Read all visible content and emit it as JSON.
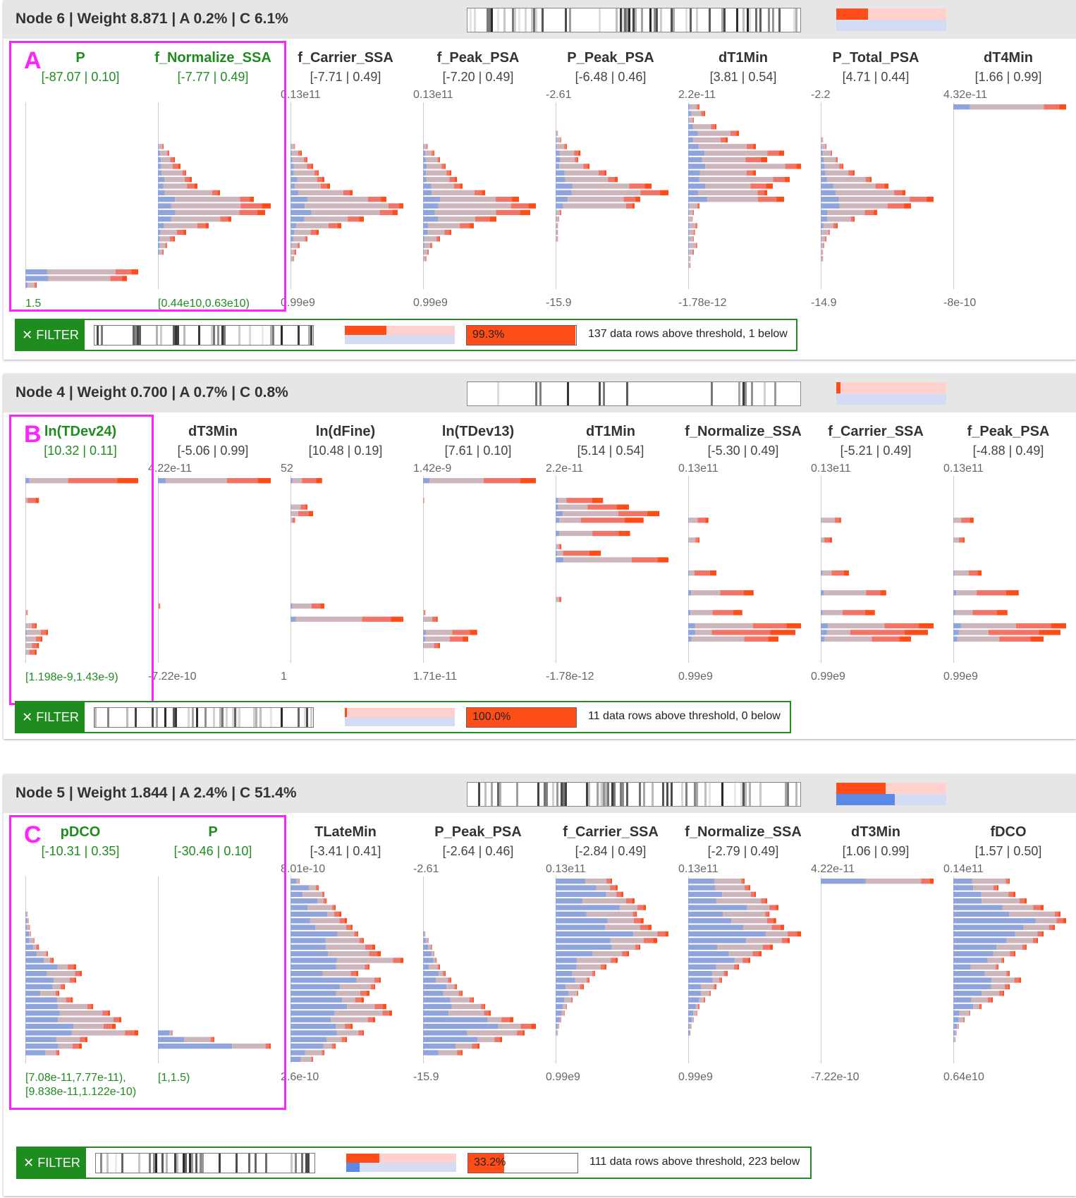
{
  "colors": {
    "selected": "#1e8c1e",
    "highlight": "#ff22ff",
    "red": "#ff4d1a",
    "blue": "#5a8ae6"
  },
  "icons": {
    "filter_close": "close-icon"
  },
  "nodes": [
    {
      "title": "Node 6 | Weight 8.871 | A 0.2% | C 6.1%",
      "letter": "A",
      "ratio": {
        "red": 0.29,
        "blue": 0.0
      },
      "strip_seed": 1,
      "columns": [
        {
          "name": "P",
          "range": "[-87.07 | 0.10]",
          "max": "",
          "min": "1.5",
          "selected": true,
          "sel_range": [
            "1.5"
          ],
          "shape": [
            0,
            0,
            0,
            0,
            0,
            0,
            0,
            0,
            0,
            0,
            0,
            0,
            0,
            0,
            0,
            0,
            0,
            0,
            0,
            0,
            0,
            0,
            0,
            0,
            0,
            1,
            0.9,
            0.1
          ],
          "redfrac": 0.15,
          "bluefrac": 0.25
        },
        {
          "name": "f_Normalize_SSA",
          "range": "[-7.77 | 0.49]",
          "max": "",
          "min": "[0.44e10,0.63e10)",
          "selected": true,
          "sel_range": [
            "[0.44e10,0.63e10)"
          ],
          "shape": [
            0,
            0,
            0,
            0,
            0,
            0,
            0.05,
            0.1,
            0.15,
            0.2,
            0.25,
            0.3,
            0.35,
            0.55,
            0.85,
            1.0,
            0.95,
            0.65,
            0.45,
            0.25,
            0.15,
            0.08,
            0.05,
            0,
            0,
            0,
            0,
            0
          ],
          "redfrac": 0.25,
          "bluefrac": 0.15
        },
        {
          "name": "f_Carrier_SSA",
          "range": "[-7.71 | 0.49]",
          "max": "0.13e11",
          "min": "0.99e9",
          "selected": false,
          "shape": [
            0,
            0,
            0,
            0,
            0,
            0,
            0.04,
            0.1,
            0.15,
            0.2,
            0.25,
            0.3,
            0.35,
            0.55,
            0.85,
            1.0,
            0.95,
            0.65,
            0.45,
            0.25,
            0.15,
            0.08,
            0.05,
            0.03,
            0,
            0,
            0,
            0
          ],
          "redfrac": 0.25,
          "bluefrac": 0.15
        },
        {
          "name": "f_Peak_PSA",
          "range": "[-7.20 | 0.49]",
          "max": "0.13e11",
          "min": "0.99e9",
          "selected": false,
          "shape": [
            0,
            0,
            0,
            0,
            0,
            0,
            0.04,
            0.1,
            0.15,
            0.2,
            0.25,
            0.3,
            0.35,
            0.55,
            0.85,
            1.0,
            0.95,
            0.65,
            0.45,
            0.25,
            0.15,
            0.08,
            0.05,
            0.03,
            0,
            0,
            0,
            0
          ],
          "redfrac": 0.25,
          "bluefrac": 0.15
        },
        {
          "name": "P_Peak_PSA",
          "range": "[-6.48 | 0.46]",
          "max": "-2.61",
          "min": "-15.9",
          "selected": false,
          "shape": [
            0,
            0,
            0,
            0,
            0.02,
            0.05,
            0.1,
            0.22,
            0.2,
            0.3,
            0.45,
            0.55,
            0.85,
            1.0,
            0.75,
            0.7,
            0.05,
            0.03,
            0.02,
            0.02,
            0.02,
            0,
            0,
            0,
            0,
            0,
            0,
            0
          ],
          "redfrac": 0.2,
          "bluefrac": 0.15
        },
        {
          "name": "dT1Min",
          "range": "[3.81 | 0.54]",
          "max": "2.2e-11",
          "min": "-1.78e-12",
          "selected": false,
          "shape": [
            0.1,
            0.15,
            0.05,
            0.25,
            0.45,
            0.35,
            0.6,
            0.85,
            0.7,
            1.0,
            0.6,
            0.9,
            0.75,
            0.7,
            0.85,
            0.1,
            0.05,
            0.04,
            0.08,
            0.06,
            0.05,
            0.08,
            0.05,
            0.02,
            0.02,
            0,
            0,
            0
          ],
          "redfrac": 0.2,
          "bluefrac": 0.15
        },
        {
          "name": "P_Total_PSA",
          "range": "[4.71 | 0.44]",
          "max": "-2.2",
          "min": "-14.9",
          "selected": false,
          "shape": [
            0,
            0,
            0,
            0,
            0,
            0.02,
            0.05,
            0.1,
            0.15,
            0.2,
            0.3,
            0.45,
            0.6,
            0.75,
            1.0,
            0.8,
            0.5,
            0.3,
            0.15,
            0.08,
            0.05,
            0.03,
            0.02,
            0.02,
            0,
            0,
            0,
            0
          ],
          "redfrac": 0.2,
          "bluefrac": 0.15
        },
        {
          "name": "dT4Min",
          "range": "[1.66 | 0.99]",
          "max": "4.32e-11",
          "min": "-8e-10",
          "selected": false,
          "shape": [
            1.0,
            0,
            0,
            0,
            0,
            0,
            0,
            0,
            0,
            0,
            0,
            0,
            0,
            0,
            0,
            0,
            0,
            0,
            0,
            0,
            0,
            0,
            0,
            0,
            0,
            0,
            0,
            0
          ],
          "redfrac": 0.15,
          "bluefrac": 0.2
        }
      ],
      "filter": {
        "label": "FILTER",
        "ratio": {
          "red": 0.38,
          "blue": 0.0
        },
        "pct": 0.993,
        "pct_label": "99.3%",
        "text": "137 data rows above threshold, 1 below",
        "strip_seed": 2
      }
    },
    {
      "title": "Node 4 | Weight 0.700 | A 0.7% | C 0.8%",
      "letter": "B",
      "ratio": {
        "red": 0.04,
        "blue": 0.0
      },
      "strip_seed": 3,
      "columns": [
        {
          "name": "ln(TDev24)",
          "range": "[10.32 | 0.11]",
          "max": "",
          "min": "[1.198e-9,1.43e-9)",
          "selected": true,
          "sel_range": [
            "[1.198e-9,1.43e-9)"
          ],
          "shape": [
            1.0,
            0,
            0,
            0.12,
            0,
            0,
            0,
            0,
            0,
            0,
            0,
            0,
            0,
            0,
            0,
            0,
            0,
            0,
            0,
            0,
            0.02,
            0,
            0.1,
            0.2,
            0.15,
            0.12,
            0.1,
            0
          ],
          "redfrac": 0.6,
          "bluefrac": 0.05
        },
        {
          "name": "dT3Min",
          "range": "[-5.06 | 0.99]",
          "max": "4.22e-11",
          "min": "-7.22e-10",
          "selected": false,
          "shape": [
            1.0,
            0,
            0,
            0,
            0,
            0,
            0,
            0,
            0,
            0,
            0,
            0,
            0,
            0,
            0,
            0,
            0,
            0,
            0,
            0.02,
            0,
            0,
            0,
            0,
            0,
            0,
            0,
            0
          ],
          "redfrac": 0.6,
          "bluefrac": 0.05
        },
        {
          "name": "ln(dFine)",
          "range": "[10.48 | 0.19]",
          "max": "52",
          "min": "1",
          "selected": false,
          "shape": [
            0.28,
            0,
            0,
            0,
            0.15,
            0.2,
            0.04,
            0,
            0,
            0,
            0,
            0,
            0,
            0,
            0,
            0,
            0,
            0,
            0,
            0.3,
            0,
            1.0,
            0,
            0,
            0,
            0,
            0,
            0
          ],
          "redfrac": 0.55,
          "bluefrac": 0.05
        },
        {
          "name": "ln(TDev13)",
          "range": "[7.61 | 0.10]",
          "max": "1.42e-9",
          "min": "1.71e-11",
          "selected": false,
          "shape": [
            1.0,
            0,
            0,
            0.01,
            0,
            0,
            0,
            0,
            0,
            0,
            0,
            0,
            0,
            0,
            0,
            0,
            0,
            0,
            0,
            0,
            0.02,
            0.13,
            0,
            0.48,
            0.4,
            0.15,
            0,
            0
          ],
          "redfrac": 0.6,
          "bluefrac": 0.05
        },
        {
          "name": "dT1Min",
          "range": "[5.14 | 0.54]",
          "max": "2.2e-11",
          "min": "-1.78e-12",
          "selected": false,
          "shape": [
            0,
            0,
            0,
            0.42,
            0.65,
            0.92,
            0.78,
            0,
            0.66,
            0,
            0.05,
            0.4,
            1.0,
            0,
            0,
            0,
            0,
            0,
            0.05,
            0,
            0,
            0,
            0,
            0,
            0,
            0,
            0,
            0
          ],
          "redfrac": 0.6,
          "bluefrac": 0.05
        },
        {
          "name": "f_Normalize_SSA",
          "range": "[-5.30 | 0.49]",
          "max": "0.13e11",
          "min": "0.99e9",
          "selected": false,
          "shape": [
            0,
            0,
            0,
            0,
            0,
            0,
            0.18,
            0,
            0,
            0.1,
            0,
            0,
            0,
            0,
            0.25,
            0,
            0,
            0.58,
            0,
            0,
            0.48,
            0,
            1.0,
            0.95,
            0.8,
            0,
            0,
            0
          ],
          "redfrac": 0.6,
          "bluefrac": 0.05
        },
        {
          "name": "f_Carrier_SSA",
          "range": "[-5.21 | 0.49]",
          "max": "0.13e11",
          "min": "0.99e9",
          "selected": false,
          "shape": [
            0,
            0,
            0,
            0,
            0,
            0,
            0.18,
            0,
            0,
            0.1,
            0,
            0,
            0,
            0,
            0.25,
            0,
            0,
            0.58,
            0,
            0,
            0.48,
            0,
            1.0,
            0.95,
            0.8,
            0,
            0,
            0
          ],
          "redfrac": 0.6,
          "bluefrac": 0.05
        },
        {
          "name": "f_Peak_PSA",
          "range": "[-4.88 | 0.49]",
          "max": "0.13e11",
          "min": "0.99e9",
          "selected": false,
          "shape": [
            0,
            0,
            0,
            0,
            0,
            0,
            0.18,
            0,
            0,
            0.1,
            0,
            0,
            0,
            0,
            0.25,
            0,
            0,
            0.58,
            0,
            0,
            0.48,
            0,
            1.0,
            0.95,
            0.8,
            0,
            0,
            0
          ],
          "redfrac": 0.6,
          "bluefrac": 0.05
        }
      ],
      "filter": {
        "label": "FILTER",
        "ratio": {
          "red": 0.02,
          "blue": 0.0
        },
        "pct": 1.0,
        "pct_label": "100.0%",
        "text": "11 data rows above threshold, 0 below",
        "strip_seed": 4
      }
    },
    {
      "title": "Node 5 | Weight 1.844 | A 2.4% | C 51.4%",
      "letter": "C",
      "ratio": {
        "red": 0.45,
        "blue": 0.53
      },
      "strip_seed": 5,
      "columns": [
        {
          "name": "pDCO",
          "range": "[-10.31 | 0.35]",
          "max": "",
          "min": "[7.08e-11,7.77e-11),",
          "selected": true,
          "sel_range": [
            "[7.08e-11,7.77e-11),",
            "[9.838e-11,1.122e-10)"
          ],
          "shape": [
            0,
            0,
            0,
            0,
            0,
            0.02,
            0.03,
            0.04,
            0.05,
            0.08,
            0.12,
            0.2,
            0.25,
            0.45,
            0.5,
            0.45,
            0.35,
            0.3,
            0.42,
            0.6,
            0.75,
            0.85,
            0.8,
            1.0,
            0.55,
            0.5,
            0.3,
            0
          ],
          "redfrac": 0.15,
          "bluefrac": 0.5
        },
        {
          "name": "P",
          "range": "[-30.46 | 0.10]",
          "max": "",
          "min": "[1,1.5)",
          "selected": true,
          "sel_range": [
            "[1,1.5)"
          ],
          "shape": [
            0,
            0,
            0,
            0,
            0,
            0,
            0,
            0,
            0,
            0,
            0,
            0,
            0,
            0,
            0,
            0,
            0,
            0,
            0,
            0,
            0,
            0,
            0,
            0.13,
            0.5,
            1.0,
            0,
            0
          ],
          "redfrac": 0.05,
          "bluefrac": 0.6
        },
        {
          "name": "TLateMin",
          "range": "[-3.41 | 0.41]",
          "max": "8.01e-10",
          "min": "2.6e-10",
          "selected": false,
          "shape": [
            0.08,
            0.25,
            0.3,
            0.32,
            0.4,
            0.45,
            0.5,
            0.55,
            0.6,
            0.65,
            0.75,
            0.8,
            1.0,
            0.7,
            0.6,
            0.8,
            0.75,
            0.7,
            0.65,
            0.85,
            0.9,
            0.75,
            0.55,
            0.65,
            0.5,
            0.4,
            0.3,
            0.2
          ],
          "redfrac": 0.1,
          "bluefrac": 0.55
        },
        {
          "name": "P_Peak_PSA",
          "range": "[-2.64 | 0.46]",
          "max": "-2.61",
          "min": "-15.9",
          "selected": false,
          "shape": [
            0,
            0,
            0,
            0,
            0,
            0,
            0,
            0,
            0.02,
            0.05,
            0.08,
            0.1,
            0.12,
            0.15,
            0.2,
            0.25,
            0.3,
            0.35,
            0.45,
            0.55,
            0.6,
            0.8,
            1.0,
            0.9,
            0.7,
            0.5,
            0.35,
            0
          ],
          "redfrac": 0.1,
          "bluefrac": 0.55
        },
        {
          "name": "f_Carrier_SSA",
          "range": "[-2.84 | 0.49]",
          "max": "0.13e11",
          "min": "0.99e9",
          "selected": false,
          "shape": [
            0.5,
            0.55,
            0.6,
            0.7,
            0.8,
            0.72,
            0.78,
            0.85,
            1.0,
            0.9,
            0.75,
            0.65,
            0.55,
            0.45,
            0.35,
            0.3,
            0.25,
            0.2,
            0.15,
            0.1,
            0.08,
            0.05,
            0.03,
            0.02,
            0,
            0,
            0,
            0
          ],
          "redfrac": 0.1,
          "bluefrac": 0.55
        },
        {
          "name": "f_Normalize_SSA",
          "range": "[-2.79 | 0.49]",
          "max": "0.13e11",
          "min": "0.99e9",
          "selected": false,
          "shape": [
            0.5,
            0.55,
            0.6,
            0.7,
            0.8,
            0.72,
            0.78,
            0.85,
            1.0,
            0.9,
            0.75,
            0.65,
            0.55,
            0.45,
            0.35,
            0.3,
            0.25,
            0.2,
            0.15,
            0.1,
            0.08,
            0.05,
            0.03,
            0.02,
            0,
            0,
            0,
            0
          ],
          "redfrac": 0.1,
          "bluefrac": 0.55
        },
        {
          "name": "dT3Min",
          "range": "[1.06 | 0.99]",
          "max": "4.22e-11",
          "min": "-7.22e-10",
          "selected": false,
          "shape": [
            1.0,
            0,
            0,
            0,
            0,
            0,
            0,
            0,
            0,
            0,
            0,
            0,
            0,
            0,
            0,
            0,
            0,
            0,
            0,
            0,
            0,
            0,
            0,
            0,
            0,
            0,
            0,
            0
          ],
          "redfrac": 0.1,
          "bluefrac": 0.55
        },
        {
          "name": "fDCO",
          "range": "[1.57 | 0.50]",
          "max": "0.14e11",
          "min": "0.64e10",
          "selected": false,
          "shape": [
            0.5,
            0.4,
            0.55,
            0.65,
            0.8,
            0.95,
            1.0,
            0.9,
            0.8,
            0.75,
            0.65,
            0.55,
            0.45,
            0.4,
            0.5,
            0.6,
            0.5,
            0.45,
            0.35,
            0.25,
            0.15,
            0.1,
            0.05,
            0.03,
            0.02,
            0,
            0,
            0
          ],
          "redfrac": 0.1,
          "bluefrac": 0.55
        }
      ],
      "filter": {
        "label": "FILTER",
        "ratio": {
          "red": 0.3,
          "blue": 0.12
        },
        "pct": 0.332,
        "pct_label": "33.2%",
        "text": "111 data rows above threshold, 223 below",
        "strip_seed": 6
      }
    }
  ]
}
